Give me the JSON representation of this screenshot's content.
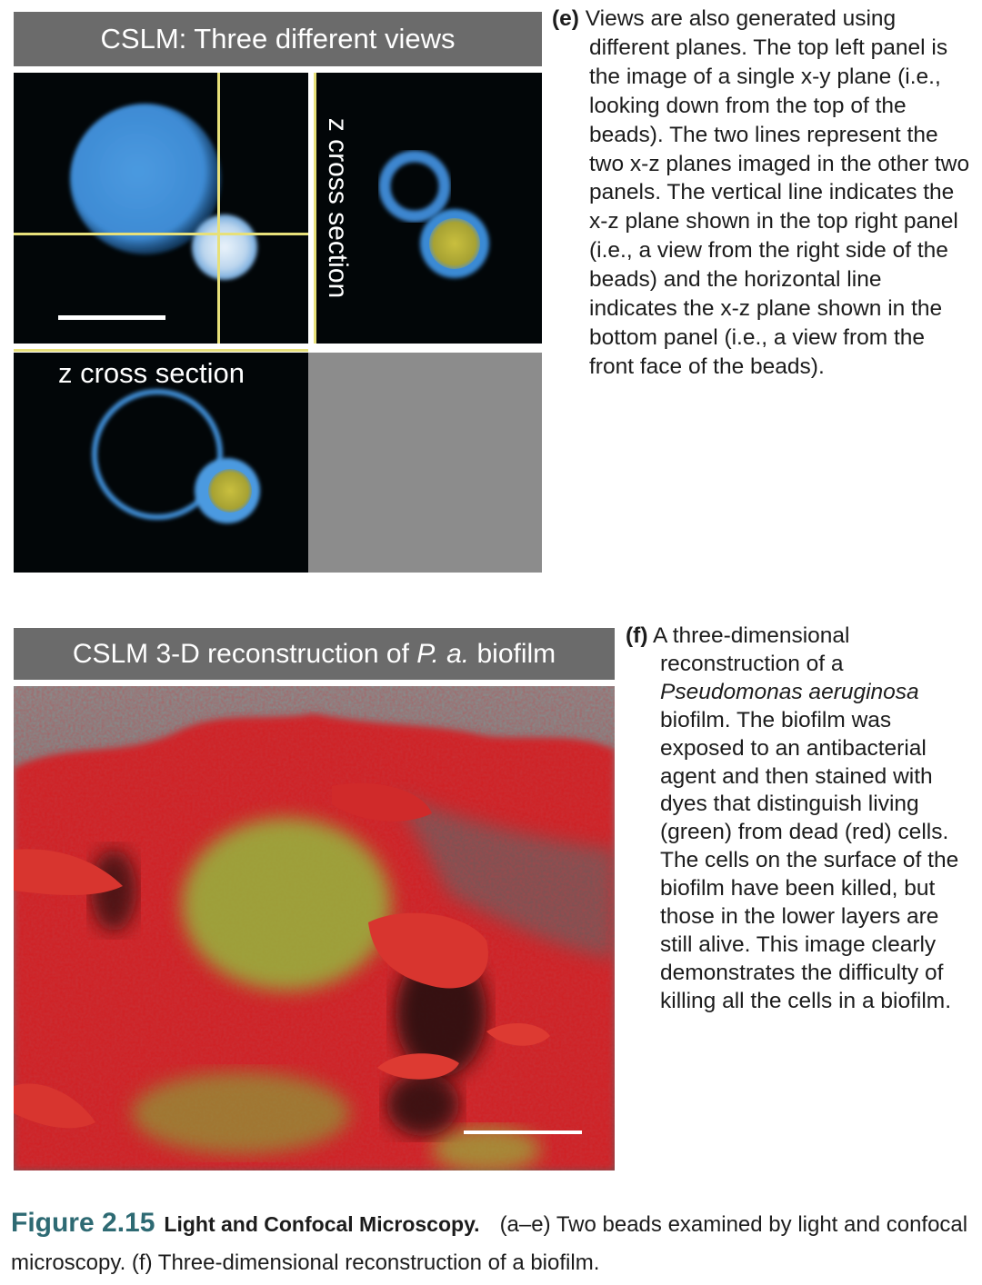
{
  "panel_e": {
    "header": "CSLM: Three different views",
    "right_view_label": "z cross section",
    "bottom_view_label": "z cross section",
    "caption_letter": "(e)",
    "caption": "Views are also generated using different planes. The top left panel is the image of a single x-y plane (i.e., looking down from the top of the beads). The two lines represent the two x-z planes imaged in the other two panels. The vertical line indicates the x-z plane shown in the top right panel (i.e., a view from the right side of the beads) and the horizontal line indicates the x-z plane shown in the bottom panel (i.e., a view from the front face of the beads)."
  },
  "panel_f": {
    "header_prefix": "CSLM 3-D reconstruction of ",
    "header_species": "P. a.",
    "header_suffix": " biofilm",
    "caption_letter": "(f)",
    "caption_before": "A three-dimensional reconstruction of a ",
    "caption_species": "Pseudomonas aeruginosa",
    "caption_after": " biofilm. The biofilm was exposed to an antibacterial agent and then stained with dyes that distinguish living (green) from dead (red) cells. The cells on the surface of the biofilm have been killed, but those in the lower layers are still alive. This image clearly demonstrates the difficulty of killing all the cells in a biofilm."
  },
  "figure": {
    "number": "Figure 2.15",
    "title": "Light and Confocal Microscopy.",
    "caption": "(a–e) Two beads examined by light and confocal microscopy. (f) Three-dimensional reconstruction of a biofilm.",
    "accent_color": "#2e6a73"
  },
  "colors": {
    "bead_blue": "#3f8fd6",
    "bead_yellow": "#b8b03a",
    "guide_line": "#e7e07a",
    "dead_cells_red": "#d8282a",
    "live_cells_green": "#8fc840"
  }
}
